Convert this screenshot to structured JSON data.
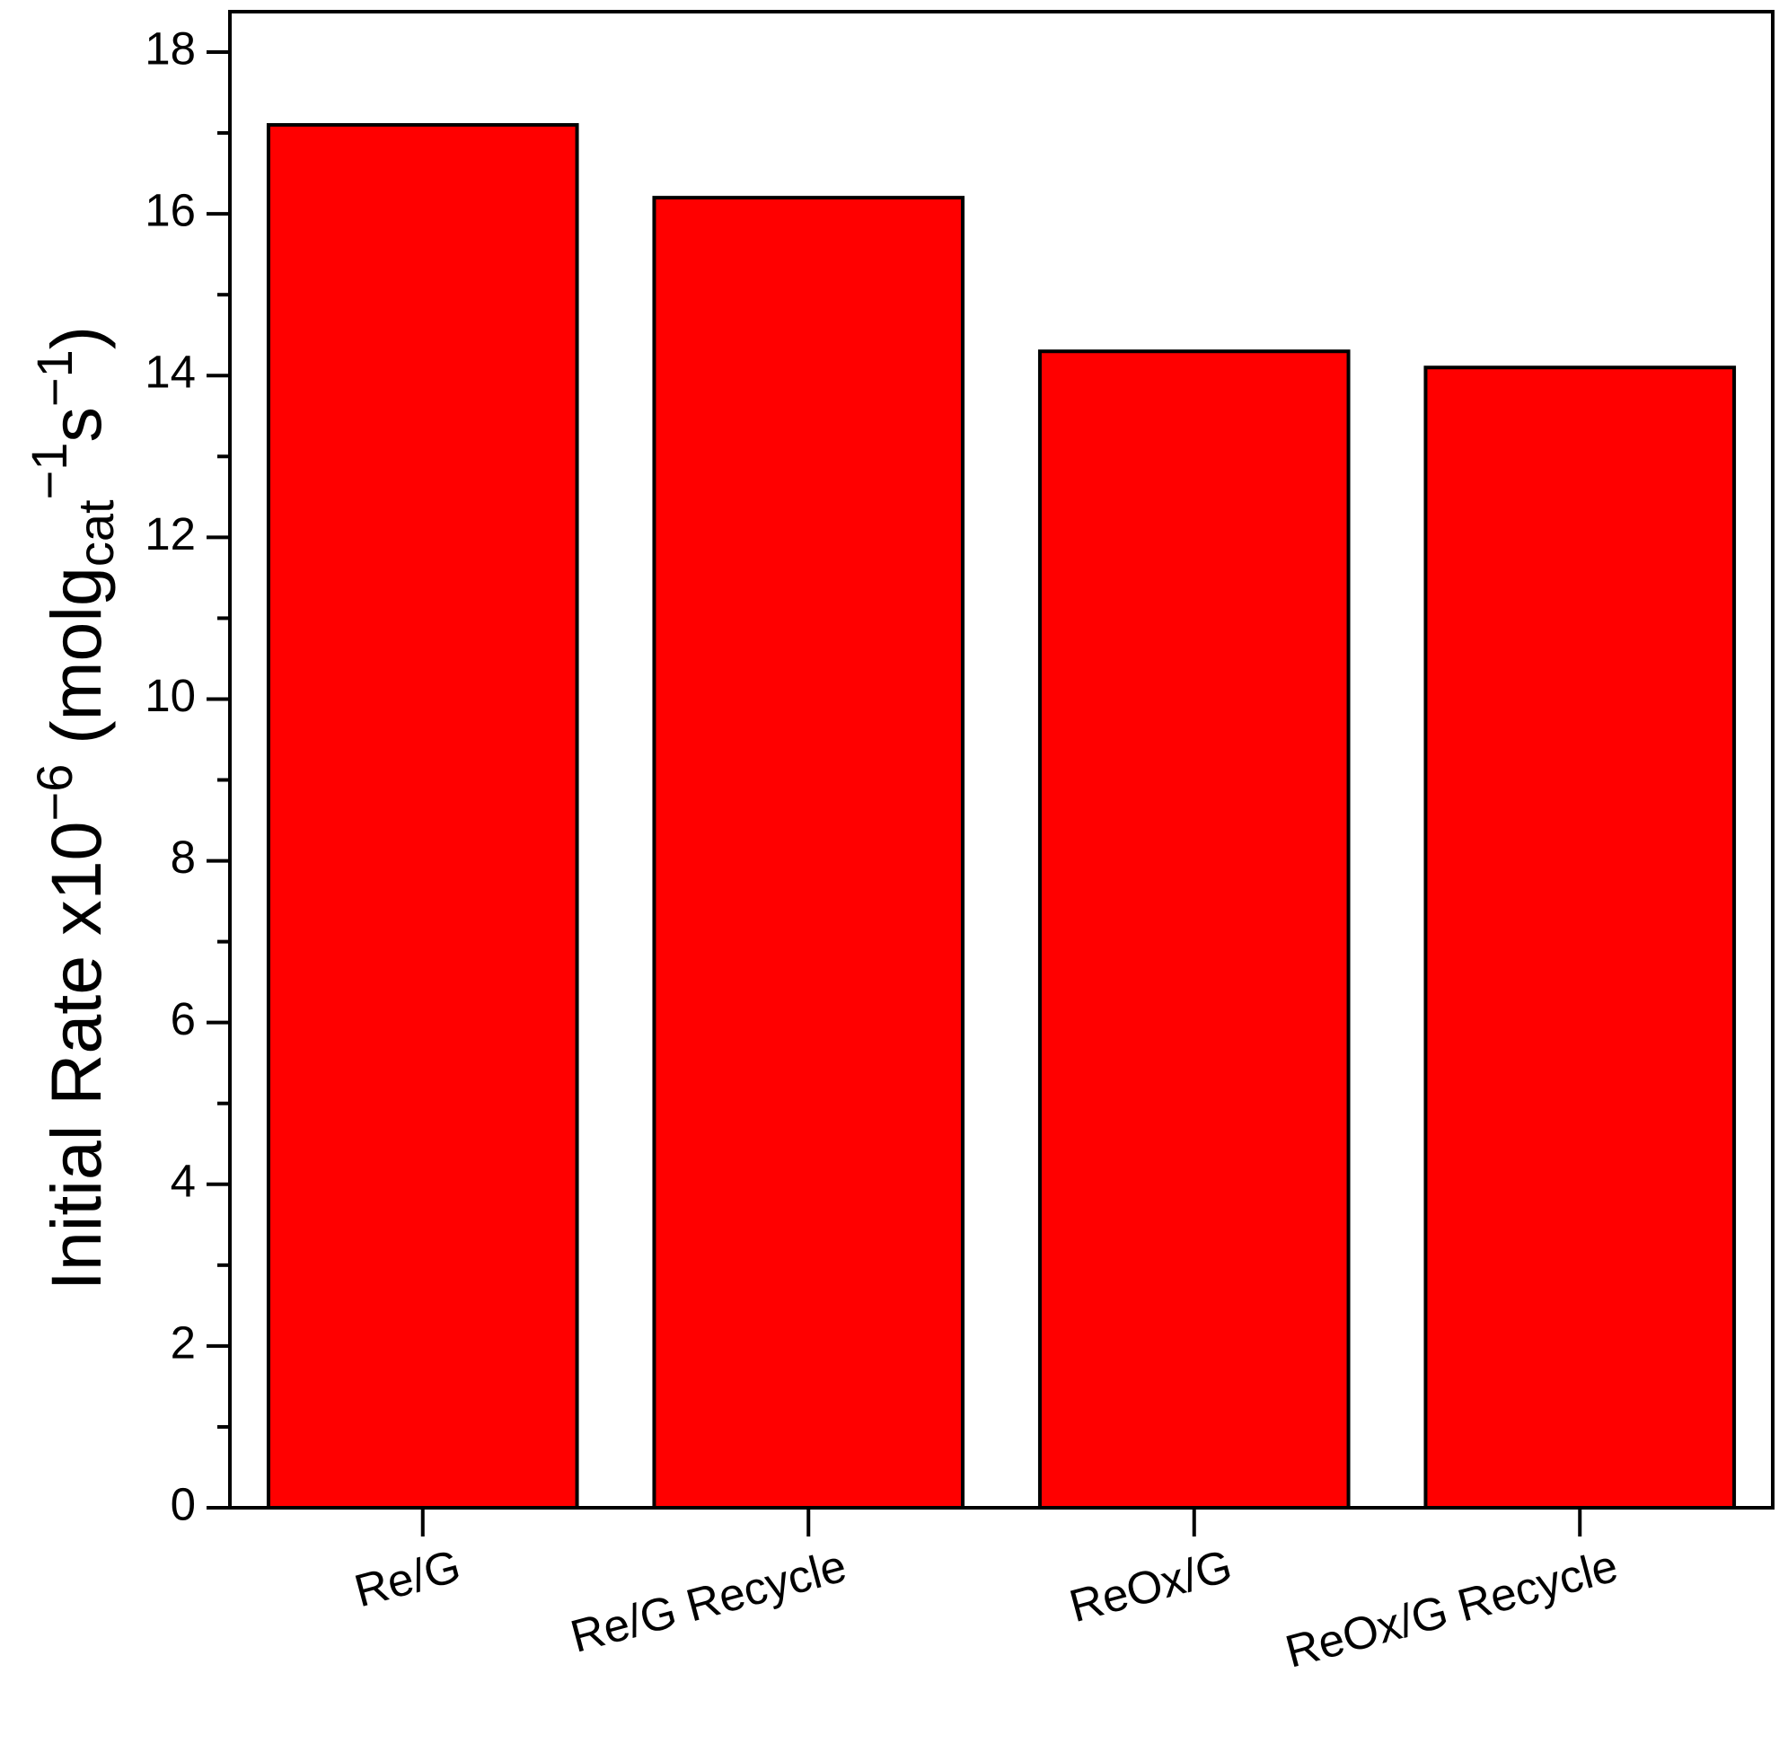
{
  "chart_data": {
    "type": "bar",
    "ylabel": [
      "Initial Rate x10",
      "−6",
      " (molg",
      "cat",
      "−1",
      "s",
      "−1",
      ")"
    ],
    "categories": [
      "Re/G",
      "Re/G Recycle",
      "ReOx/G",
      "ReOx/G Recycle"
    ],
    "values": [
      17.1,
      16.2,
      14.3,
      14.1
    ],
    "color": "#ff0000",
    "ylim": [
      0,
      18.5
    ],
    "yticks": [
      0,
      2,
      4,
      6,
      8,
      10,
      12,
      14,
      16,
      18
    ],
    "yminorticks": [
      1,
      3,
      5,
      7,
      9,
      11,
      13,
      15,
      17
    ]
  }
}
